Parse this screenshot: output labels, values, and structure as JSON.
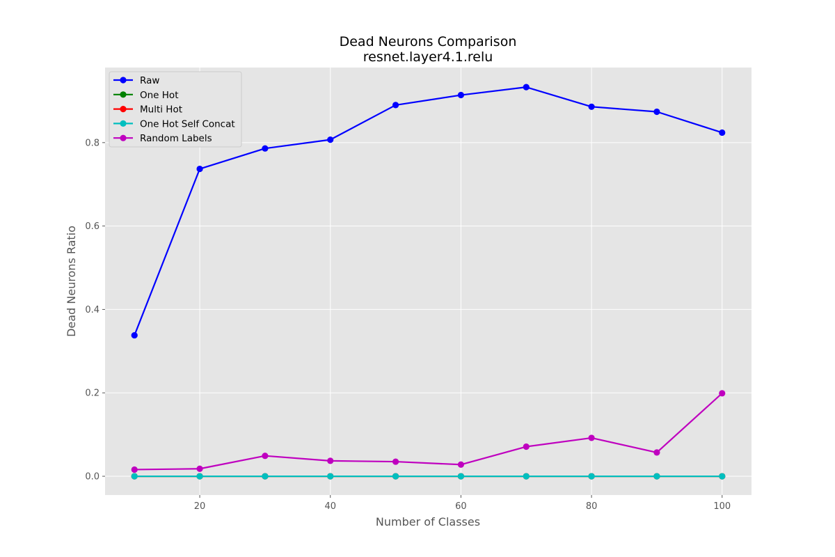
{
  "chart_data": {
    "type": "line",
    "title": "Dead Neurons Comparison",
    "subtitle": "resnet.layer4.1.relu",
    "xlabel": "Number of Classes",
    "ylabel": "Dead Neurons Ratio",
    "x": [
      10,
      20,
      30,
      40,
      50,
      60,
      70,
      80,
      90,
      100
    ],
    "xlim": [
      5.5,
      104.5
    ],
    "ylim": [
      -0.045,
      0.98
    ],
    "xticks": [
      20,
      40,
      60,
      80,
      100
    ],
    "yticks": [
      0.0,
      0.2,
      0.4,
      0.6,
      0.8
    ],
    "xtick_labels": [
      "20",
      "40",
      "60",
      "80",
      "100"
    ],
    "ytick_labels": [
      "0.0",
      "0.2",
      "0.4",
      "0.6",
      "0.8"
    ],
    "grid": true,
    "legend_position": "top-left",
    "series": [
      {
        "name": "Raw",
        "color": "#0000ff",
        "values": [
          0.338,
          0.737,
          0.786,
          0.807,
          0.89,
          0.914,
          0.933,
          0.886,
          0.874,
          0.824
        ]
      },
      {
        "name": "One Hot",
        "color": "#008000",
        "values": [
          0.0,
          0.0,
          0.0,
          0.0,
          0.0,
          0.0,
          0.0,
          0.0,
          0.0,
          0.0
        ]
      },
      {
        "name": "Multi Hot",
        "color": "#ff0000",
        "values": [
          0.0,
          0.0,
          0.0,
          0.0,
          0.0,
          0.0,
          0.0,
          0.0,
          0.0,
          0.0
        ]
      },
      {
        "name": "One Hot Self Concat",
        "color": "#00bfbf",
        "values": [
          0.0,
          0.0,
          0.0,
          0.0,
          0.0,
          0.0,
          0.0,
          0.0,
          0.0,
          0.0
        ]
      },
      {
        "name": "Random Labels",
        "color": "#bf00bf",
        "values": [
          0.016,
          0.018,
          0.049,
          0.037,
          0.035,
          0.028,
          0.071,
          0.092,
          0.057,
          0.199
        ]
      }
    ]
  }
}
